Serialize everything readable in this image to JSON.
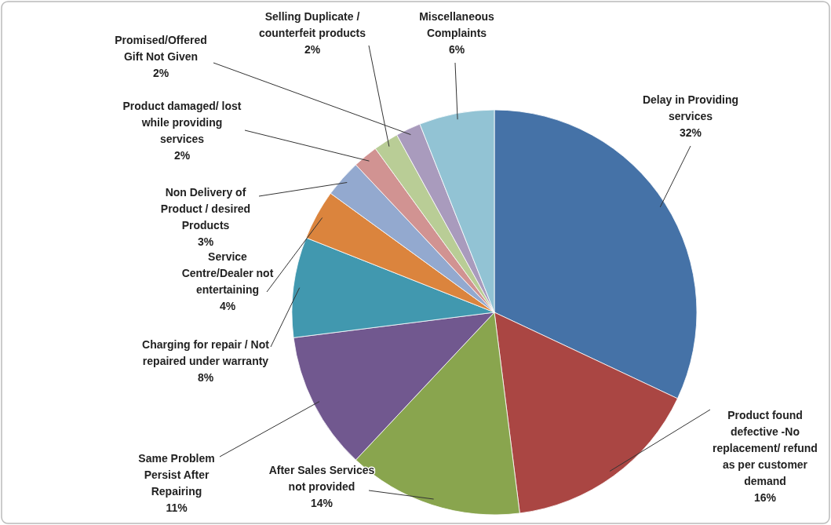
{
  "chart_data": {
    "type": "pie",
    "categories": [
      "Delay in Providing services",
      "Product found defective -No replacement/ refund as per customer demand",
      "After Sales Services not provided",
      "Same Problem Persist After Repairing",
      "Charging for repair / Not repaired under warranty",
      "Service Centre/Dealer not entertaining",
      "Non Delivery of Product / desired Products",
      "Product damaged/ lost while providing services",
      "Selling Duplicate / counterfeit products",
      "Promised/Offered Gift Not Given",
      "Miscellaneous Complaints"
    ],
    "values": [
      32,
      16,
      14,
      11,
      8,
      4,
      3,
      2,
      2,
      2,
      6
    ],
    "value_labels": [
      "32%",
      "16%",
      "14%",
      "11%",
      "8%",
      "4%",
      "3%",
      "2%",
      "2%",
      "2%",
      "6%"
    ],
    "colors": [
      "#4572a7",
      "#aa4643",
      "#89a54e",
      "#71588f",
      "#4198af",
      "#db843d",
      "#93a9cf",
      "#d19392",
      "#b9cd96",
      "#a99bbd",
      "#92c3d4"
    ]
  }
}
